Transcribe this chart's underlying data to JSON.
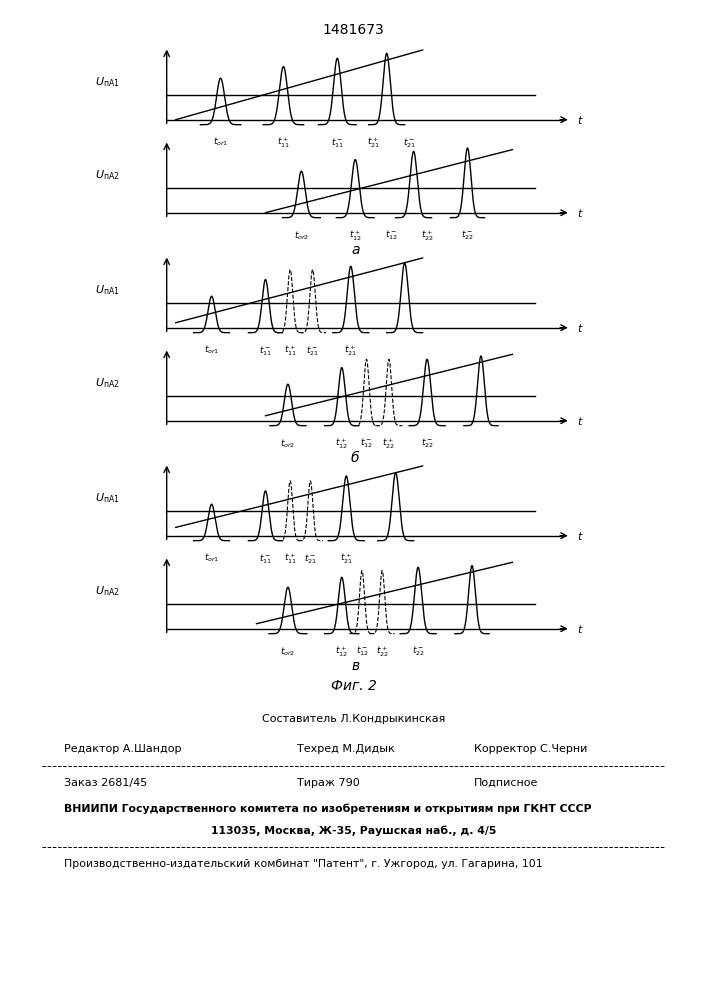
{
  "title": "1481673",
  "fig_caption": "Фиг. 2",
  "background_color": "#ffffff",
  "ylabels": [
    "UпА1",
    "UпА2",
    "UпА1",
    "UпА2",
    "UпА1",
    "UпА2"
  ],
  "group_labels": [
    "а",
    "б",
    "в"
  ],
  "tick_labels_row0": [
    "t_{ор1}",
    "t^+_{11}",
    "t^-_{11}",
    "t^+_{21}",
    "t^-_{21}"
  ],
  "tick_labels_row1": [
    "t_{ор2}",
    "t^+_{12}",
    "t^-_{12}",
    "t^+_{22}",
    "t^-_{22}"
  ],
  "tick_labels_row2": [
    "t_{ор1}",
    "t^-_{11}",
    "t^+_{11}",
    "t^-_{21}",
    "t^+_{21}"
  ],
  "tick_labels_row3": [
    "t_{ор2}",
    "t^+_{12}",
    "t^-_{12}",
    "t^+_{22}",
    "t^-_{22}"
  ],
  "tick_labels_row4": [
    "t_{ор1}",
    "t^-_{11}",
    "t^+_{11}",
    "t^-_{21}",
    "t^+_{21}"
  ],
  "tick_labels_row5": [
    "t_{ор2}",
    "t^+_{12}",
    "t^-_{12}",
    "t^+_{22}",
    "t^-_{22}"
  ]
}
